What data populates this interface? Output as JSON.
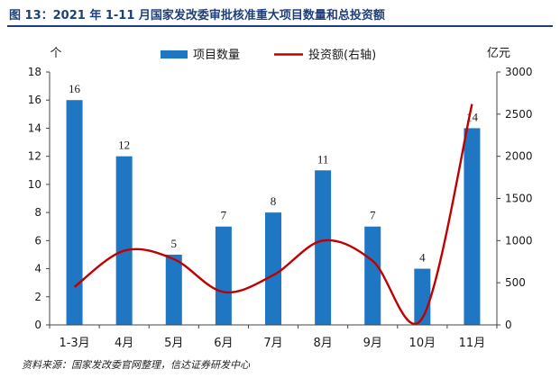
{
  "figure": {
    "title": "图 13：2021 年 1-11 月国家发改委审批核准重大项目数量和总投资额",
    "source": "资料来源：国家发改委官网整理，信达证券研发中心"
  },
  "chart_data": {
    "type": "bar",
    "categories": [
      "1-3月",
      "4月",
      "5月",
      "6月",
      "7月",
      "8月",
      "9月",
      "10月",
      "11月"
    ],
    "series": [
      {
        "name": "项目数量",
        "type": "bar",
        "axis": "left",
        "color": "#1f77c4",
        "values": [
          16,
          12,
          5,
          7,
          8,
          11,
          7,
          4,
          14
        ]
      },
      {
        "name": "投资额(右轴)",
        "type": "line",
        "axis": "right",
        "color": "#c00000",
        "values": [
          450,
          880,
          780,
          390,
          590,
          1000,
          760,
          80,
          2620
        ]
      }
    ],
    "y_left": {
      "unit": "个",
      "ylim": [
        0,
        18
      ],
      "ticks": [
        0,
        2,
        4,
        6,
        8,
        10,
        12,
        14,
        16,
        18
      ]
    },
    "y_right": {
      "unit": "亿元",
      "ylim": [
        0,
        3000
      ],
      "ticks": [
        0,
        500,
        1000,
        1500,
        2000,
        2500,
        3000
      ]
    },
    "grid": false,
    "legend": "top-center"
  }
}
